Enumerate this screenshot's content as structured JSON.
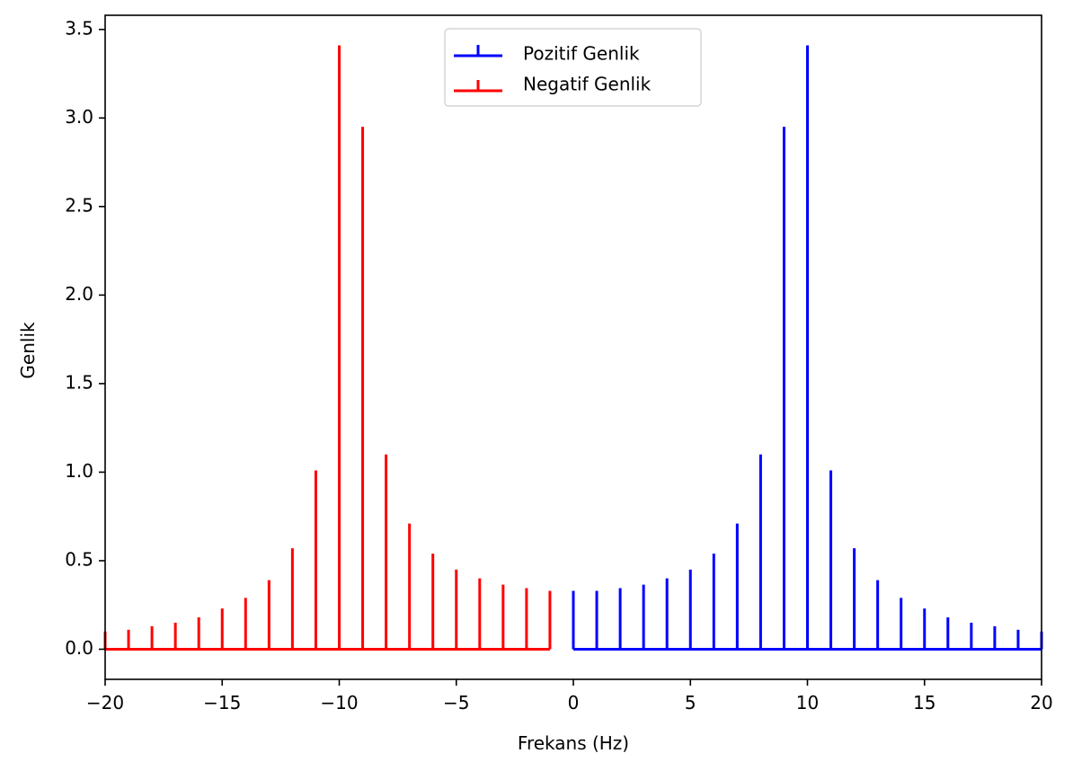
{
  "chart_data": {
    "type": "stem",
    "xlabel": "Frekans (Hz)",
    "ylabel": "Genlik",
    "xlim": [
      -20,
      20
    ],
    "ylim": [
      -0.17,
      3.58
    ],
    "xticks": [
      -20,
      -15,
      -10,
      -5,
      0,
      5,
      10,
      15,
      20
    ],
    "xtick_labels": [
      "−20",
      "−15",
      "−10",
      "−5",
      "0",
      "5",
      "10",
      "15",
      "20"
    ],
    "yticks": [
      0.0,
      0.5,
      1.0,
      1.5,
      2.0,
      2.5,
      3.0,
      3.5
    ],
    "ytick_labels": [
      "0.0",
      "0.5",
      "1.0",
      "1.5",
      "2.0",
      "2.5",
      "3.0",
      "3.5"
    ],
    "legend_position": "upper center",
    "series": [
      {
        "name": "Pozitif Genlik",
        "color": "#0000ff",
        "x": [
          0,
          1,
          2,
          3,
          4,
          5,
          6,
          7,
          8,
          9,
          10,
          11,
          12,
          13,
          14,
          15,
          16,
          17,
          18,
          19,
          20
        ],
        "values": [
          0.33,
          0.33,
          0.345,
          0.365,
          0.4,
          0.45,
          0.54,
          0.71,
          1.1,
          2.95,
          3.41,
          1.01,
          0.57,
          0.39,
          0.29,
          0.23,
          0.18,
          0.15,
          0.13,
          0.11,
          0.1
        ]
      },
      {
        "name": "Negatif Genlik",
        "color": "#ff0000",
        "x": [
          -20,
          -19,
          -18,
          -17,
          -16,
          -15,
          -14,
          -13,
          -12,
          -11,
          -10,
          -9,
          -8,
          -7,
          -6,
          -5,
          -4,
          -3,
          -2,
          -1
        ],
        "values": [
          0.1,
          0.11,
          0.13,
          0.15,
          0.18,
          0.23,
          0.29,
          0.39,
          0.57,
          1.01,
          3.41,
          2.95,
          1.1,
          0.71,
          0.54,
          0.45,
          0.4,
          0.365,
          0.345,
          0.33
        ]
      }
    ]
  }
}
